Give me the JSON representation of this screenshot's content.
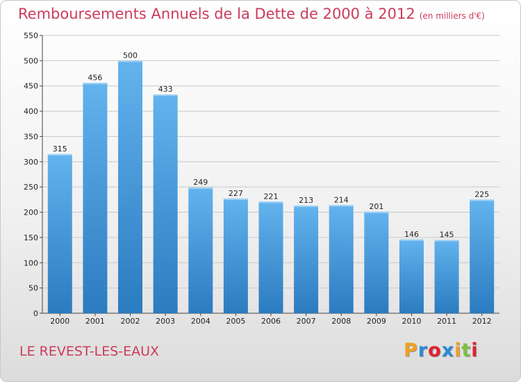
{
  "chart_data": {
    "type": "bar",
    "title": "Remboursements Annuels de la Dette de 2000 à 2012",
    "subtitle": "(en milliers d'€)",
    "categories": [
      "2000",
      "2001",
      "2002",
      "2003",
      "2004",
      "2005",
      "2006",
      "2007",
      "2008",
      "2009",
      "2010",
      "2011",
      "2012"
    ],
    "values": [
      315,
      456,
      500,
      433,
      249,
      227,
      221,
      213,
      214,
      201,
      146,
      145,
      225
    ],
    "ylim": [
      0,
      550
    ],
    "yticks": [
      0,
      50,
      100,
      150,
      200,
      250,
      300,
      350,
      400,
      450,
      500,
      550
    ],
    "grid": true,
    "bar_color_top": "#63b3ee",
    "bar_color_bottom": "#2b7bc0"
  },
  "footer": {
    "location": "LE REVEST-LES-EAUX"
  },
  "logo": {
    "letters": [
      "P",
      "r",
      "o",
      "x",
      "i",
      "t",
      "i"
    ],
    "colors": [
      "#f0a020",
      "#2a8ad8",
      "#e0222e",
      "#2a8ad8",
      "#f0a020",
      "#7cc242",
      "#e0222e"
    ]
  },
  "colors": {
    "title": "#cc3b5c",
    "grid": "#c8c8c8"
  }
}
